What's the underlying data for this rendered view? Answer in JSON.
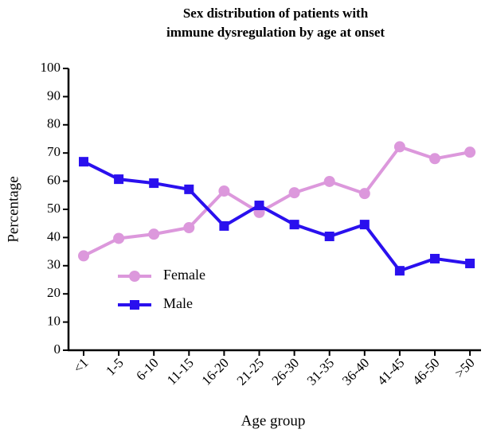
{
  "chart_data": {
    "type": "line",
    "title": [
      "Sex distribution of patients with",
      "immune dysregulation by age at onset"
    ],
    "x_label": "Age group",
    "y_label": "Percentage",
    "categories": [
      "<1",
      "1-5",
      "6-10",
      "11-15",
      "16-20",
      "21-25",
      "26-30",
      "31-35",
      "36-40",
      "41-45",
      "46-50",
      ">50"
    ],
    "series": [
      {
        "name": "Female",
        "color": "#dc98dc",
        "marker": "circle",
        "values": [
          33.5,
          39.7,
          41.2,
          43.5,
          56.5,
          48.9,
          55.9,
          59.9,
          55.6,
          72.2,
          68.0,
          70.3
        ]
      },
      {
        "name": "Male",
        "color": "#2a10ee",
        "marker": "square",
        "values": [
          66.9,
          60.7,
          59.3,
          57.1,
          44.1,
          51.4,
          44.6,
          40.4,
          44.6,
          28.2,
          32.5,
          30.8
        ]
      }
    ],
    "ylim": [
      0,
      100
    ],
    "yticks": [
      0,
      10,
      20,
      30,
      40,
      50,
      60,
      70,
      80,
      90,
      100
    ],
    "grid": false
  }
}
